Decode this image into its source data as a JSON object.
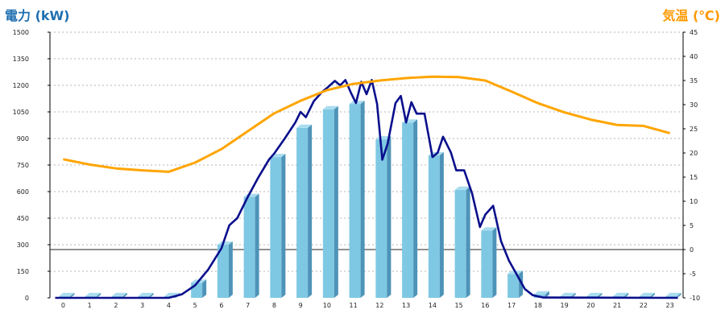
{
  "chart_data": {
    "type": "bar+line",
    "left_axis": {
      "label": "電力 (kW)",
      "range": [
        0,
        1500
      ],
      "ticks": [
        0,
        150,
        300,
        450,
        600,
        750,
        900,
        1050,
        1200,
        1350,
        1500
      ]
    },
    "right_axis": {
      "label": "気温 (℃)",
      "range": [
        -10,
        45
      ],
      "ticks": [
        -10,
        -5,
        0,
        5,
        10,
        15,
        20,
        25,
        30,
        35,
        40,
        45
      ]
    },
    "categories": [
      "0",
      "1",
      "2",
      "3",
      "4",
      "5",
      "6",
      "7",
      "8",
      "9",
      "10",
      "11",
      "12",
      "13",
      "14",
      "15",
      "16",
      "17",
      "18",
      "19",
      "20",
      "21",
      "22",
      "23"
    ],
    "grid": true,
    "series": [
      {
        "kind": "bar",
        "axis": "left",
        "color": "#7ec8e3",
        "values": [
          10,
          10,
          10,
          10,
          10,
          85,
          300,
          570,
          795,
          960,
          1065,
          1095,
          895,
          990,
          805,
          610,
          380,
          135,
          20,
          10,
          10,
          10,
          10,
          10
        ]
      },
      {
        "kind": "line",
        "axis": "left",
        "color": "#0a0f8c",
        "points": [
          [
            -0.3,
            0
          ],
          [
            4,
            0
          ],
          [
            4.5,
            20
          ],
          [
            5,
            70
          ],
          [
            5.5,
            160
          ],
          [
            6,
            280
          ],
          [
            6.3,
            410
          ],
          [
            6.6,
            450
          ],
          [
            7,
            570
          ],
          [
            7.4,
            680
          ],
          [
            7.8,
            780
          ],
          [
            8,
            815
          ],
          [
            8.4,
            900
          ],
          [
            8.8,
            990
          ],
          [
            9,
            1050
          ],
          [
            9.2,
            1020
          ],
          [
            9.5,
            1110
          ],
          [
            9.8,
            1160
          ],
          [
            10,
            1185
          ],
          [
            10.3,
            1225
          ],
          [
            10.5,
            1200
          ],
          [
            10.7,
            1230
          ],
          [
            10.9,
            1160
          ],
          [
            11.1,
            1100
          ],
          [
            11.3,
            1220
          ],
          [
            11.5,
            1150
          ],
          [
            11.7,
            1230
          ],
          [
            11.9,
            1095
          ],
          [
            12.1,
            780
          ],
          [
            12.3,
            870
          ],
          [
            12.6,
            1100
          ],
          [
            12.8,
            1140
          ],
          [
            13,
            990
          ],
          [
            13.2,
            1105
          ],
          [
            13.4,
            1040
          ],
          [
            13.7,
            1040
          ],
          [
            14,
            795
          ],
          [
            14.2,
            820
          ],
          [
            14.4,
            910
          ],
          [
            14.7,
            820
          ],
          [
            14.9,
            720
          ],
          [
            15.2,
            720
          ],
          [
            15.5,
            590
          ],
          [
            15.8,
            400
          ],
          [
            16,
            470
          ],
          [
            16.3,
            520
          ],
          [
            16.6,
            320
          ],
          [
            16.9,
            210
          ],
          [
            17.2,
            130
          ],
          [
            17.5,
            50
          ],
          [
            17.8,
            15
          ],
          [
            18.2,
            2
          ],
          [
            23.3,
            0
          ]
        ]
      },
      {
        "kind": "line",
        "axis": "right",
        "color": "#ffa500",
        "points": [
          [
            0,
            18.7
          ],
          [
            1,
            17.6
          ],
          [
            2,
            16.8
          ],
          [
            3,
            16.4
          ],
          [
            4,
            16.1
          ],
          [
            5,
            18.0
          ],
          [
            6,
            20.8
          ],
          [
            7,
            24.5
          ],
          [
            8,
            28.2
          ],
          [
            9,
            30.8
          ],
          [
            10,
            33.0
          ],
          [
            11,
            34.3
          ],
          [
            12,
            35.0
          ],
          [
            13,
            35.5
          ],
          [
            14,
            35.8
          ],
          [
            15,
            35.7
          ],
          [
            16,
            35.0
          ],
          [
            17,
            32.7
          ],
          [
            18,
            30.3
          ],
          [
            19,
            28.4
          ],
          [
            20,
            26.9
          ],
          [
            21,
            25.8
          ],
          [
            22,
            25.6
          ],
          [
            23,
            24.1
          ]
        ]
      }
    ]
  }
}
